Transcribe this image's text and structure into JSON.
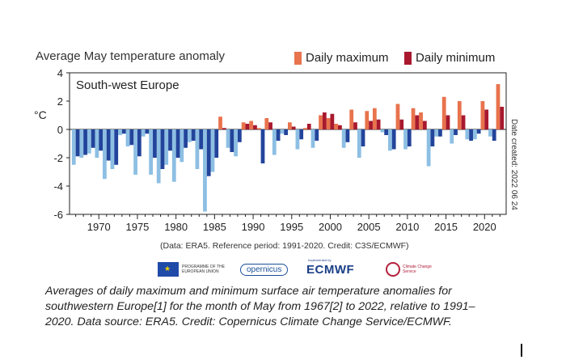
{
  "chart_data": {
    "type": "bar",
    "title": "Average May temperature anomaly",
    "region_label": "South-west Europe",
    "ylabel": "°C",
    "xlabel": "",
    "ylim": [
      -6,
      4
    ],
    "yticks": [
      4,
      2,
      0,
      -2,
      -4,
      -6
    ],
    "xticks": [
      1970,
      1975,
      1980,
      1985,
      1990,
      1995,
      2000,
      2005,
      2010,
      2015,
      2020
    ],
    "grid": false,
    "legend_position": "top-right",
    "years": [
      1967,
      1968,
      1969,
      1970,
      1971,
      1972,
      1973,
      1974,
      1975,
      1976,
      1977,
      1978,
      1979,
      1980,
      1981,
      1982,
      1983,
      1984,
      1985,
      1986,
      1987,
      1988,
      1989,
      1990,
      1991,
      1992,
      1993,
      1994,
      1995,
      1996,
      1997,
      1998,
      1999,
      2000,
      2001,
      2002,
      2003,
      2004,
      2005,
      2006,
      2007,
      2008,
      2009,
      2010,
      2011,
      2012,
      2013,
      2014,
      2015,
      2016,
      2017,
      2018,
      2019,
      2020,
      2021,
      2022
    ],
    "series": [
      {
        "name": "Daily maximum",
        "positive_color": "#e8734d",
        "negative_color": "#8dbfe3",
        "values": [
          -2.5,
          -2.0,
          -1.7,
          -2.0,
          -3.5,
          -2.8,
          -0.4,
          -1.2,
          -3.2,
          -0.5,
          -3.2,
          -3.8,
          -2.5,
          -3.7,
          -2.3,
          -0.9,
          -2.8,
          -5.8,
          -3.0,
          0.9,
          -1.3,
          -1.9,
          0.5,
          0.6,
          0.1,
          0.8,
          -1.8,
          -0.3,
          0.5,
          -1.4,
          0.1,
          -1.3,
          1.0,
          0.8,
          0.4,
          -1.3,
          1.4,
          -2.0,
          1.3,
          1.5,
          -0.2,
          -1.5,
          1.8,
          -1.4,
          1.5,
          1.2,
          -2.6,
          -0.5,
          2.3,
          -1.0,
          2.0,
          -0.7,
          -0.7,
          2.0,
          -0.5,
          3.2
        ]
      },
      {
        "name": "Daily minimum",
        "positive_color": "#a8192e",
        "negative_color": "#23449b",
        "values": [
          -1.9,
          -1.8,
          -1.3,
          -1.5,
          -2.2,
          -2.5,
          -0.3,
          -1.1,
          -1.9,
          -0.3,
          -2.0,
          -2.8,
          -1.5,
          -2.0,
          -1.3,
          -0.8,
          -1.4,
          -3.3,
          -2.0,
          0.1,
          -1.6,
          -0.9,
          0.4,
          0.3,
          -2.4,
          0.5,
          -0.8,
          -0.4,
          0.2,
          -0.7,
          0.4,
          -0.8,
          1.2,
          1.1,
          0.3,
          -0.9,
          0.5,
          -1.2,
          0.6,
          0.7,
          -0.4,
          -1.4,
          0.7,
          -1.2,
          1.0,
          0.6,
          -1.2,
          -0.5,
          1.0,
          -0.4,
          1.0,
          -0.8,
          -0.3,
          1.4,
          -0.8,
          1.6
        ]
      }
    ],
    "side_note": "Date created: 2022 06 24",
    "credit_note": "(Data: ERA5.  Reference period: 1991-2020.  Credit: C3S/ECMWF)"
  },
  "logos": {
    "eu_label": "PROGRAMME OF THE EUROPEAN UNION",
    "copernicus": "opernicus",
    "ecmwf_tag": "Implemented by",
    "ecmwf": "ECMWF",
    "c3s_label": "Climate Change Service"
  },
  "caption": "Averages of daily maximum and minimum surface air temperature anomalies for southwestern Europe[1] for the month of May from 1967[2] to 2022, relative to 1991–2020. Data source: ERA5. Credit: Copernicus Climate Change Service/ECMWF."
}
